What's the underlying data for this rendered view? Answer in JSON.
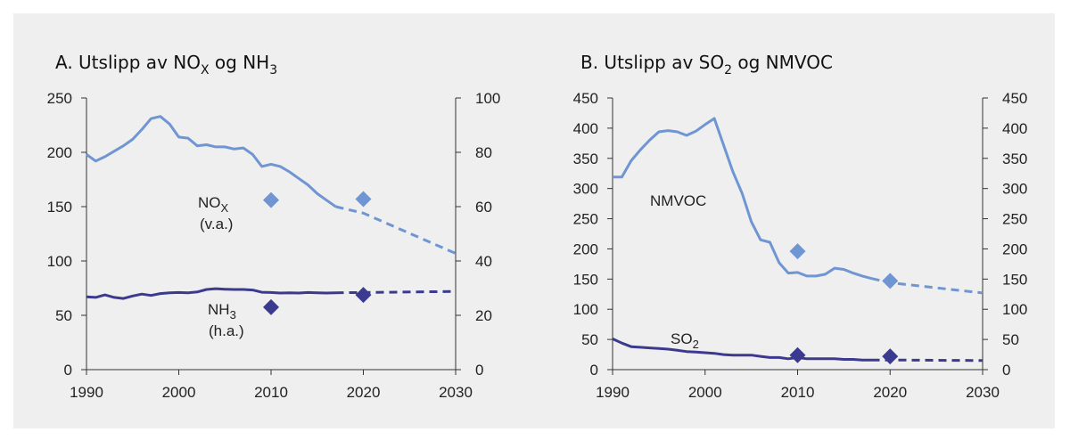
{
  "panels": {
    "a": {
      "title": {
        "prefix": "A.  Utslipp av NO",
        "sub1": "X",
        "mid": " og NH",
        "sub2": "3"
      },
      "annotations": {
        "nox": {
          "main": "NO",
          "sub": "X",
          "note": "(v.a.)"
        },
        "nh3": {
          "main": "NH",
          "sub": "3",
          "note": "(h.a.)"
        }
      }
    },
    "b": {
      "title": {
        "prefix": "B.  Utslipp av SO",
        "sub1": "2",
        "mid": " og NMVOC",
        "sub2": ""
      },
      "annotations": {
        "nmvoc": {
          "main": "NMVOC"
        },
        "so2": {
          "main": "SO",
          "sub": "2"
        }
      }
    }
  },
  "colors": {
    "light_series": "#6f95d2",
    "dark_series": "#3c3a8f",
    "axis": "#333333"
  },
  "chart_data": [
    {
      "type": "line",
      "title": "A. Utslipp av NOX og NH3",
      "x_ticks": [
        1990,
        2000,
        2010,
        2020,
        2030
      ],
      "xlim": [
        1990,
        2030
      ],
      "y_left": {
        "ticks": [
          0,
          50,
          100,
          150,
          200,
          250
        ],
        "lim": [
          0,
          250
        ]
      },
      "y_right": {
        "ticks": [
          0,
          20,
          40,
          60,
          80,
          100
        ],
        "lim": [
          0,
          100
        ]
      },
      "grid": false,
      "series": [
        {
          "name": "NOX",
          "axis": "left",
          "color": "#6f95d2",
          "x": [
            1990,
            1991,
            1992,
            1993,
            1994,
            1995,
            1996,
            1997,
            1998,
            1999,
            2000,
            2001,
            2002,
            2003,
            2004,
            2005,
            2006,
            2007,
            2008,
            2009,
            2010,
            2011,
            2012,
            2013,
            2014,
            2015,
            2016,
            2017
          ],
          "y": [
            198,
            192,
            196,
            201,
            206,
            212,
            221,
            231,
            233,
            226,
            214,
            213,
            206,
            207,
            205,
            205,
            203,
            204,
            198,
            187,
            189,
            187,
            182,
            176,
            170,
            162,
            156,
            150
          ],
          "projection": {
            "x": [
              2017,
              2020,
              2030
            ],
            "y": [
              150,
              144,
              107
            ]
          },
          "markers": [
            {
              "x": 2010,
              "y": 156
            },
            {
              "x": 2020,
              "y": 157
            }
          ]
        },
        {
          "name": "NH3",
          "axis": "right",
          "color": "#3c3a8f",
          "x": [
            1990,
            1991,
            1992,
            1993,
            1994,
            1995,
            1996,
            1997,
            1998,
            1999,
            2000,
            2001,
            2002,
            2003,
            2004,
            2005,
            2006,
            2007,
            2008,
            2009,
            2010,
            2011,
            2012,
            2013,
            2014,
            2015,
            2016,
            2017
          ],
          "y": [
            26.8,
            26.6,
            27.5,
            26.6,
            26.2,
            27.1,
            27.8,
            27.3,
            28.0,
            28.3,
            28.4,
            28.3,
            28.6,
            29.5,
            29.8,
            29.6,
            29.5,
            29.5,
            29.3,
            28.5,
            28.4,
            28.2,
            28.3,
            28.2,
            28.4,
            28.3,
            28.2,
            28.3
          ],
          "projection": {
            "x": [
              2017,
              2020,
              2030
            ],
            "y": [
              28.3,
              28.4,
              28.8
            ]
          },
          "markers": [
            {
              "x": 2010,
              "y": 23
            },
            {
              "x": 2020,
              "y": 27.5
            }
          ]
        }
      ]
    },
    {
      "type": "line",
      "title": "B. Utslipp av SO2 og NMVOC",
      "x_ticks": [
        1990,
        2000,
        2010,
        2020,
        2030
      ],
      "xlim": [
        1990,
        2030
      ],
      "y_left": {
        "ticks": [
          0,
          50,
          100,
          150,
          200,
          250,
          300,
          350,
          400,
          450
        ],
        "lim": [
          0,
          450
        ]
      },
      "y_right": {
        "ticks": [
          0,
          50,
          100,
          150,
          200,
          250,
          300,
          350,
          400,
          450
        ],
        "lim": [
          0,
          450
        ]
      },
      "grid": false,
      "series": [
        {
          "name": "NMVOC",
          "axis": "left",
          "color": "#6f95d2",
          "x": [
            1990,
            1991,
            1992,
            1993,
            1994,
            1995,
            1996,
            1997,
            1998,
            1999,
            2000,
            2001,
            2002,
            2003,
            2004,
            2005,
            2006,
            2007,
            2008,
            2009,
            2010,
            2011,
            2012,
            2013,
            2014,
            2015,
            2016,
            2017,
            2018
          ],
          "y": [
            319,
            319,
            346,
            364,
            380,
            394,
            396,
            394,
            388,
            395,
            406,
            416,
            372,
            328,
            292,
            245,
            215,
            211,
            177,
            160,
            161,
            155,
            155,
            158,
            168,
            166,
            160,
            155,
            151
          ],
          "projection": {
            "x": [
              2018,
              2020,
              2030
            ],
            "y": [
              151,
              144,
              127
            ]
          },
          "markers": [
            {
              "x": 2010,
              "y": 196
            },
            {
              "x": 2020,
              "y": 147
            }
          ]
        },
        {
          "name": "SO2",
          "axis": "left",
          "color": "#3c3a8f",
          "x": [
            1990,
            1991,
            1992,
            1993,
            1994,
            1995,
            1996,
            1997,
            1998,
            1999,
            2000,
            2001,
            2002,
            2003,
            2004,
            2005,
            2006,
            2007,
            2008,
            2009,
            2010,
            2011,
            2012,
            2013,
            2014,
            2015,
            2016,
            2017,
            2018
          ],
          "y": [
            51,
            44,
            38,
            37,
            36,
            35,
            34,
            32,
            30,
            29,
            28,
            27,
            25,
            24,
            24,
            24,
            22,
            20,
            20,
            18,
            20,
            18,
            18,
            18,
            18,
            17,
            17,
            16,
            16
          ],
          "projection": {
            "x": [
              2018,
              2020,
              2030
            ],
            "y": [
              16,
              16,
              15
            ]
          },
          "markers": [
            {
              "x": 2010,
              "y": 24
            },
            {
              "x": 2020,
              "y": 22
            }
          ]
        }
      ]
    }
  ]
}
